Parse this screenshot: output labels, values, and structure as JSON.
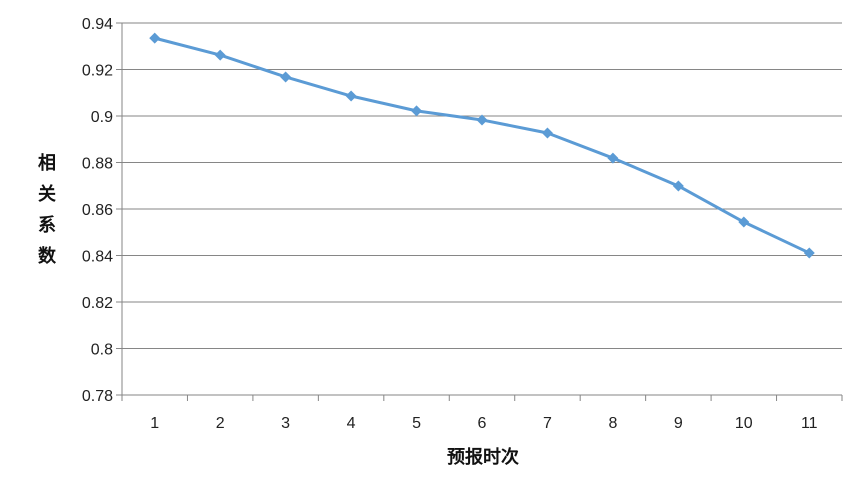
{
  "chart_data": {
    "type": "line",
    "title": "",
    "xlabel": "预报时次",
    "ylabel": "相关系数",
    "categories": [
      "1",
      "2",
      "3",
      "4",
      "5",
      "6",
      "7",
      "8",
      "9",
      "10",
      "11"
    ],
    "series": [
      {
        "name": "相关系数",
        "values": [
          0.9335,
          0.9262,
          0.9168,
          0.9086,
          0.9022,
          0.8983,
          0.8927,
          0.8819,
          0.8699,
          0.8544,
          0.8411
        ]
      }
    ],
    "ylim": [
      0.78,
      0.94
    ],
    "yticks": [
      "0.78",
      "0.8",
      "0.82",
      "0.84",
      "0.86",
      "0.88",
      "0.9",
      "0.92",
      "0.94"
    ],
    "grid": true,
    "legend": "none",
    "colors": {
      "line": "#5b9bd5",
      "grid": "#868686"
    }
  }
}
